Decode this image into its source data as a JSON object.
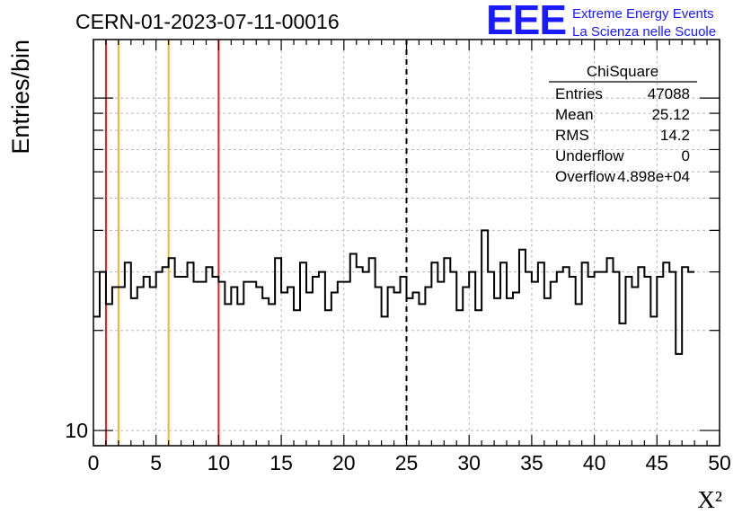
{
  "header": {
    "run_title": "CERN-01-2023-07-11-00016",
    "logo_text": "EEE",
    "logo_line1": "Extreme Energy Events",
    "logo_line2": "La Scienza nelle Scuole",
    "brand_color": "#1a1aff"
  },
  "stats": {
    "title": "ChiSquare",
    "rows": [
      {
        "label": "Entries",
        "value": "47088"
      },
      {
        "label": "Mean",
        "value": "25.12"
      },
      {
        "label": "RMS",
        "value": "14.2"
      },
      {
        "label": "Underflow",
        "value": "0"
      },
      {
        "label": "Overflow",
        "value": "4.898e+04"
      }
    ]
  },
  "chart_data": {
    "type": "histogram",
    "title": "CERN-01-2023-07-11-00016",
    "xlabel": "X²",
    "ylabel": "Entries/bin",
    "xlim": [
      0,
      50
    ],
    "y_scale": "log",
    "ylim": [
      9,
      150
    ],
    "x_ticks": [
      0,
      5,
      10,
      15,
      20,
      25,
      30,
      35,
      40,
      45,
      50
    ],
    "x_tick_labels": [
      "0",
      "5",
      "10",
      "15",
      "20",
      "25",
      "30",
      "35",
      "40",
      "45",
      "50"
    ],
    "y_tick_labels": [
      {
        "value": 10,
        "label": "10"
      }
    ],
    "grid": true,
    "bin_width": 0.5,
    "values": [
      22,
      30,
      24,
      27,
      27,
      32,
      25,
      27,
      29,
      27,
      30,
      31,
      33,
      29,
      29,
      32,
      28,
      28,
      31,
      29,
      28,
      24,
      27,
      24,
      28,
      28,
      27,
      25,
      24,
      33,
      26,
      27,
      23,
      32,
      26,
      29,
      30,
      23,
      26,
      28,
      28,
      34,
      31,
      30,
      33,
      27,
      22,
      27,
      26,
      29,
      25,
      26,
      24,
      27,
      32,
      28,
      33,
      30,
      23,
      27,
      30,
      23,
      40,
      30,
      25,
      32,
      25,
      26,
      35,
      30,
      28,
      32,
      25,
      28,
      30,
      31,
      29,
      24,
      32,
      29,
      30,
      30,
      33,
      30,
      21,
      29,
      27,
      31,
      29,
      22,
      29,
      32,
      30,
      17,
      31,
      30
    ],
    "vertical_lines": [
      {
        "x": 1,
        "color": "#dd2222",
        "style": "solid"
      },
      {
        "x": 2,
        "color": "#f0b429",
        "style": "solid"
      },
      {
        "x": 6,
        "color": "#f0b429",
        "style": "solid"
      },
      {
        "x": 10,
        "color": "#dd2222",
        "style": "solid"
      },
      {
        "x": 25,
        "color": "#000000",
        "style": "dashed"
      }
    ]
  }
}
